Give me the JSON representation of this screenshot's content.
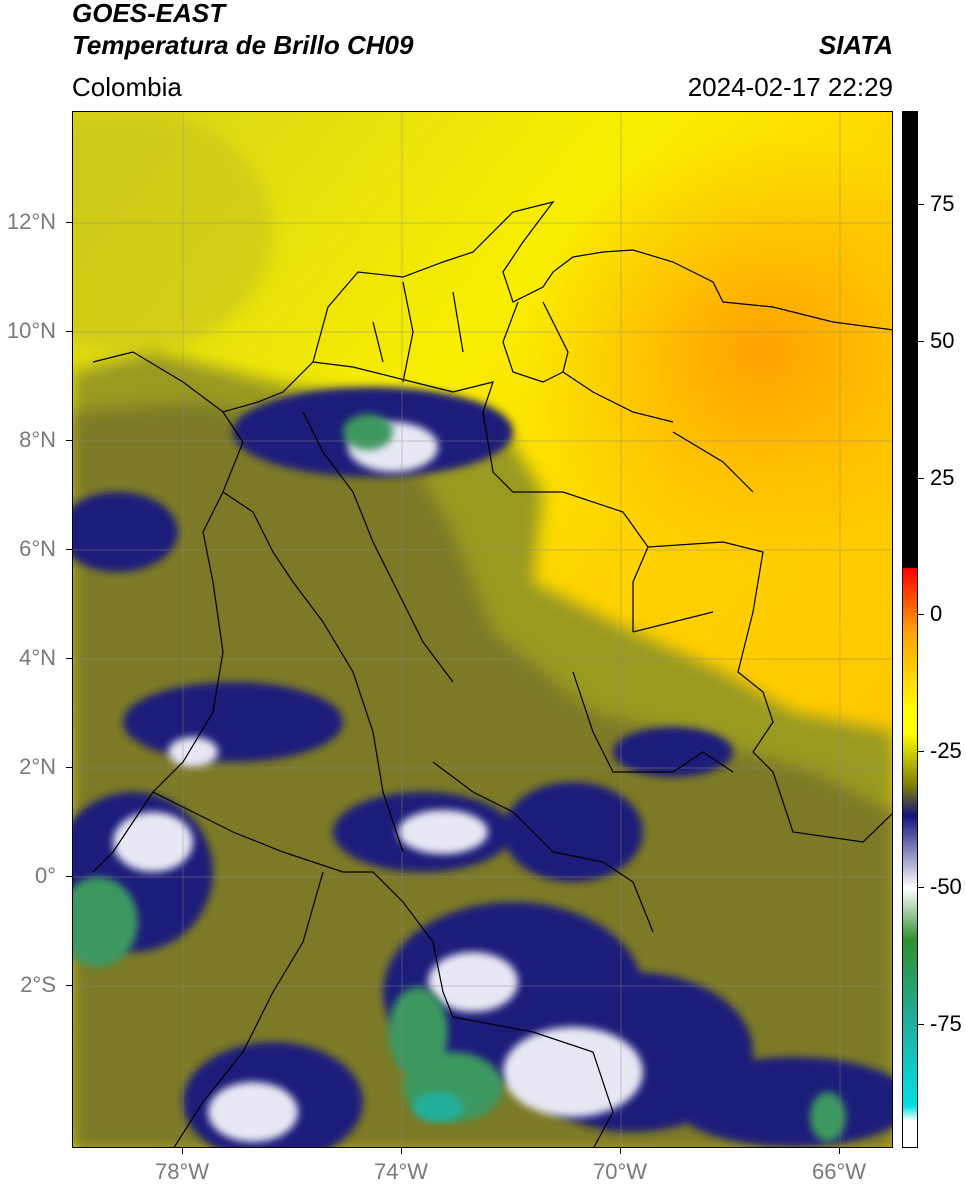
{
  "header": {
    "title_line1": "GOES-EAST",
    "title_line2": "Temperatura de Brillo CH09",
    "source": "SIATA",
    "region": "Colombia",
    "datetime": "2024-02-17 22:29"
  },
  "axes": {
    "lat_ticks": [
      "12°N",
      "10°N",
      "8°N",
      "6°N",
      "4°N",
      "2°N",
      "0°",
      "2°S"
    ],
    "lon_ticks": [
      "78°W",
      "74°W",
      "70°W",
      "66°W"
    ]
  },
  "colorbar": {
    "ticks": [
      "75",
      "50",
      "25",
      "0",
      "-25",
      "-50",
      "-75"
    ],
    "range": [
      -95,
      90
    ],
    "colors": {
      "hot": "#000000",
      "warm": "#ff0000",
      "orange": "#ff9f00",
      "yellow": "#ffff00",
      "olive": "#808000",
      "navy": "#141480",
      "white": "#ffffff",
      "green": "#2f8f2f",
      "teal": "#20b0a0",
      "cyan": "#00e0e0"
    }
  }
}
